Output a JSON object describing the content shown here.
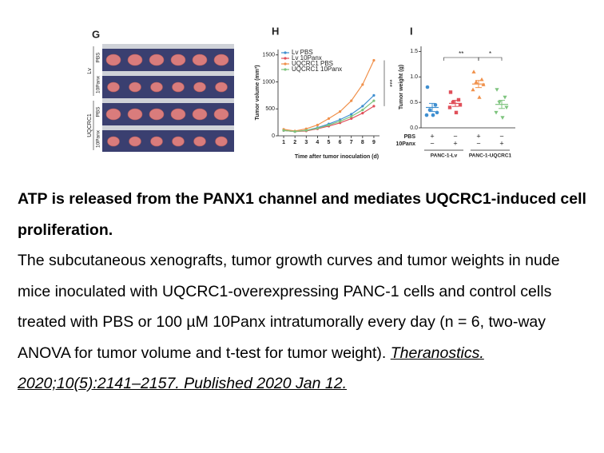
{
  "figure": {
    "panels": [
      "G",
      "H",
      "I"
    ],
    "photo_labels": {
      "treatments": [
        "PBS",
        "10Panx",
        "PBS",
        "10Panx"
      ],
      "groups": [
        "Lv",
        "UQCRC1"
      ]
    }
  },
  "chart_data": [
    {
      "type": "line",
      "x": [
        1,
        2,
        3,
        4,
        5,
        6,
        7,
        8,
        9
      ],
      "xlim": [
        0.5,
        9.5
      ],
      "xticks": [
        1,
        2,
        3,
        4,
        5,
        6,
        7,
        8,
        9
      ],
      "ylim": [
        0,
        1600
      ],
      "yticks": [
        0,
        500,
        1000,
        1500
      ],
      "ylabel": "Tumor volume (mm³)",
      "xlabel": "Time after tumor inoculation (d)",
      "annotation": "***",
      "legend": "top-left",
      "series": [
        {
          "name": "Lv PBS",
          "color": "#3f8fd0",
          "values": [
            100,
            80,
            100,
            150,
            220,
            300,
            400,
            550,
            750
          ]
        },
        {
          "name": "Lv 10Panx",
          "color": "#e0505a",
          "values": [
            100,
            80,
            90,
            130,
            180,
            240,
            320,
            420,
            550
          ]
        },
        {
          "name": "UQCRC1 PBS",
          "color": "#f0904a",
          "values": [
            120,
            90,
            130,
            200,
            320,
            450,
            650,
            950,
            1400
          ]
        },
        {
          "name": "UQCRC1 10Panx",
          "color": "#7ec47e",
          "values": [
            100,
            80,
            100,
            140,
            200,
            270,
            360,
            480,
            650
          ]
        }
      ]
    },
    {
      "type": "dot",
      "ylabel": "Tumor weight (g)",
      "ylim": [
        0,
        1.6
      ],
      "yticks": [
        {
          "value": 0,
          "label": "0.0"
        },
        0.5,
        {
          "value": 1,
          "label": "1.0"
        },
        1.5
      ],
      "groups": [
        {
          "color": "#3f8fd0",
          "marker": "circle",
          "values": [
            0.8,
            0.45,
            0.35,
            0.3,
            0.25,
            0.25
          ]
        },
        {
          "color": "#e0505a",
          "marker": "square",
          "values": [
            0.7,
            0.55,
            0.5,
            0.45,
            0.4,
            0.3
          ]
        },
        {
          "color": "#f0904a",
          "marker": "triangle",
          "values": [
            1.1,
            0.95,
            0.9,
            0.85,
            0.75,
            0.6
          ]
        },
        {
          "color": "#7ec47e",
          "marker": "triangle-down",
          "values": [
            0.75,
            0.6,
            0.5,
            0.4,
            0.3,
            0.2
          ]
        }
      ],
      "means": [
        0.4,
        0.48,
        0.86,
        0.46
      ],
      "errors": [
        0.08,
        0.06,
        0.07,
        0.08
      ],
      "row_labels": [
        "PBS",
        "10Panx"
      ],
      "pbs": [
        "+",
        "−",
        "+",
        "−"
      ],
      "panx": [
        "−",
        "+",
        "−",
        "+"
      ],
      "group_labels": [
        "PANC-1-Lv",
        "PANC-1-UQCRC1"
      ],
      "significance": [
        "**",
        "*"
      ]
    }
  ],
  "caption": {
    "title": "ATP is released from the PANX1 channel and mediates UQCRC1-induced cell proliferation.",
    "body": "The subcutaneous xenografts, tumor growth curves and tumor weights in nude mice inoculated with UQCRC1-overexpressing PANC-1 cells and control cells treated with PBS or 100 µM 10Panx intratumorally every day (n = 6, two-way ANOVA for tumor volume and t-test for tumor weight). ",
    "citation": "Theranostics. 2020;10(5):2141–2157. Published 2020 Jan 12. "
  }
}
